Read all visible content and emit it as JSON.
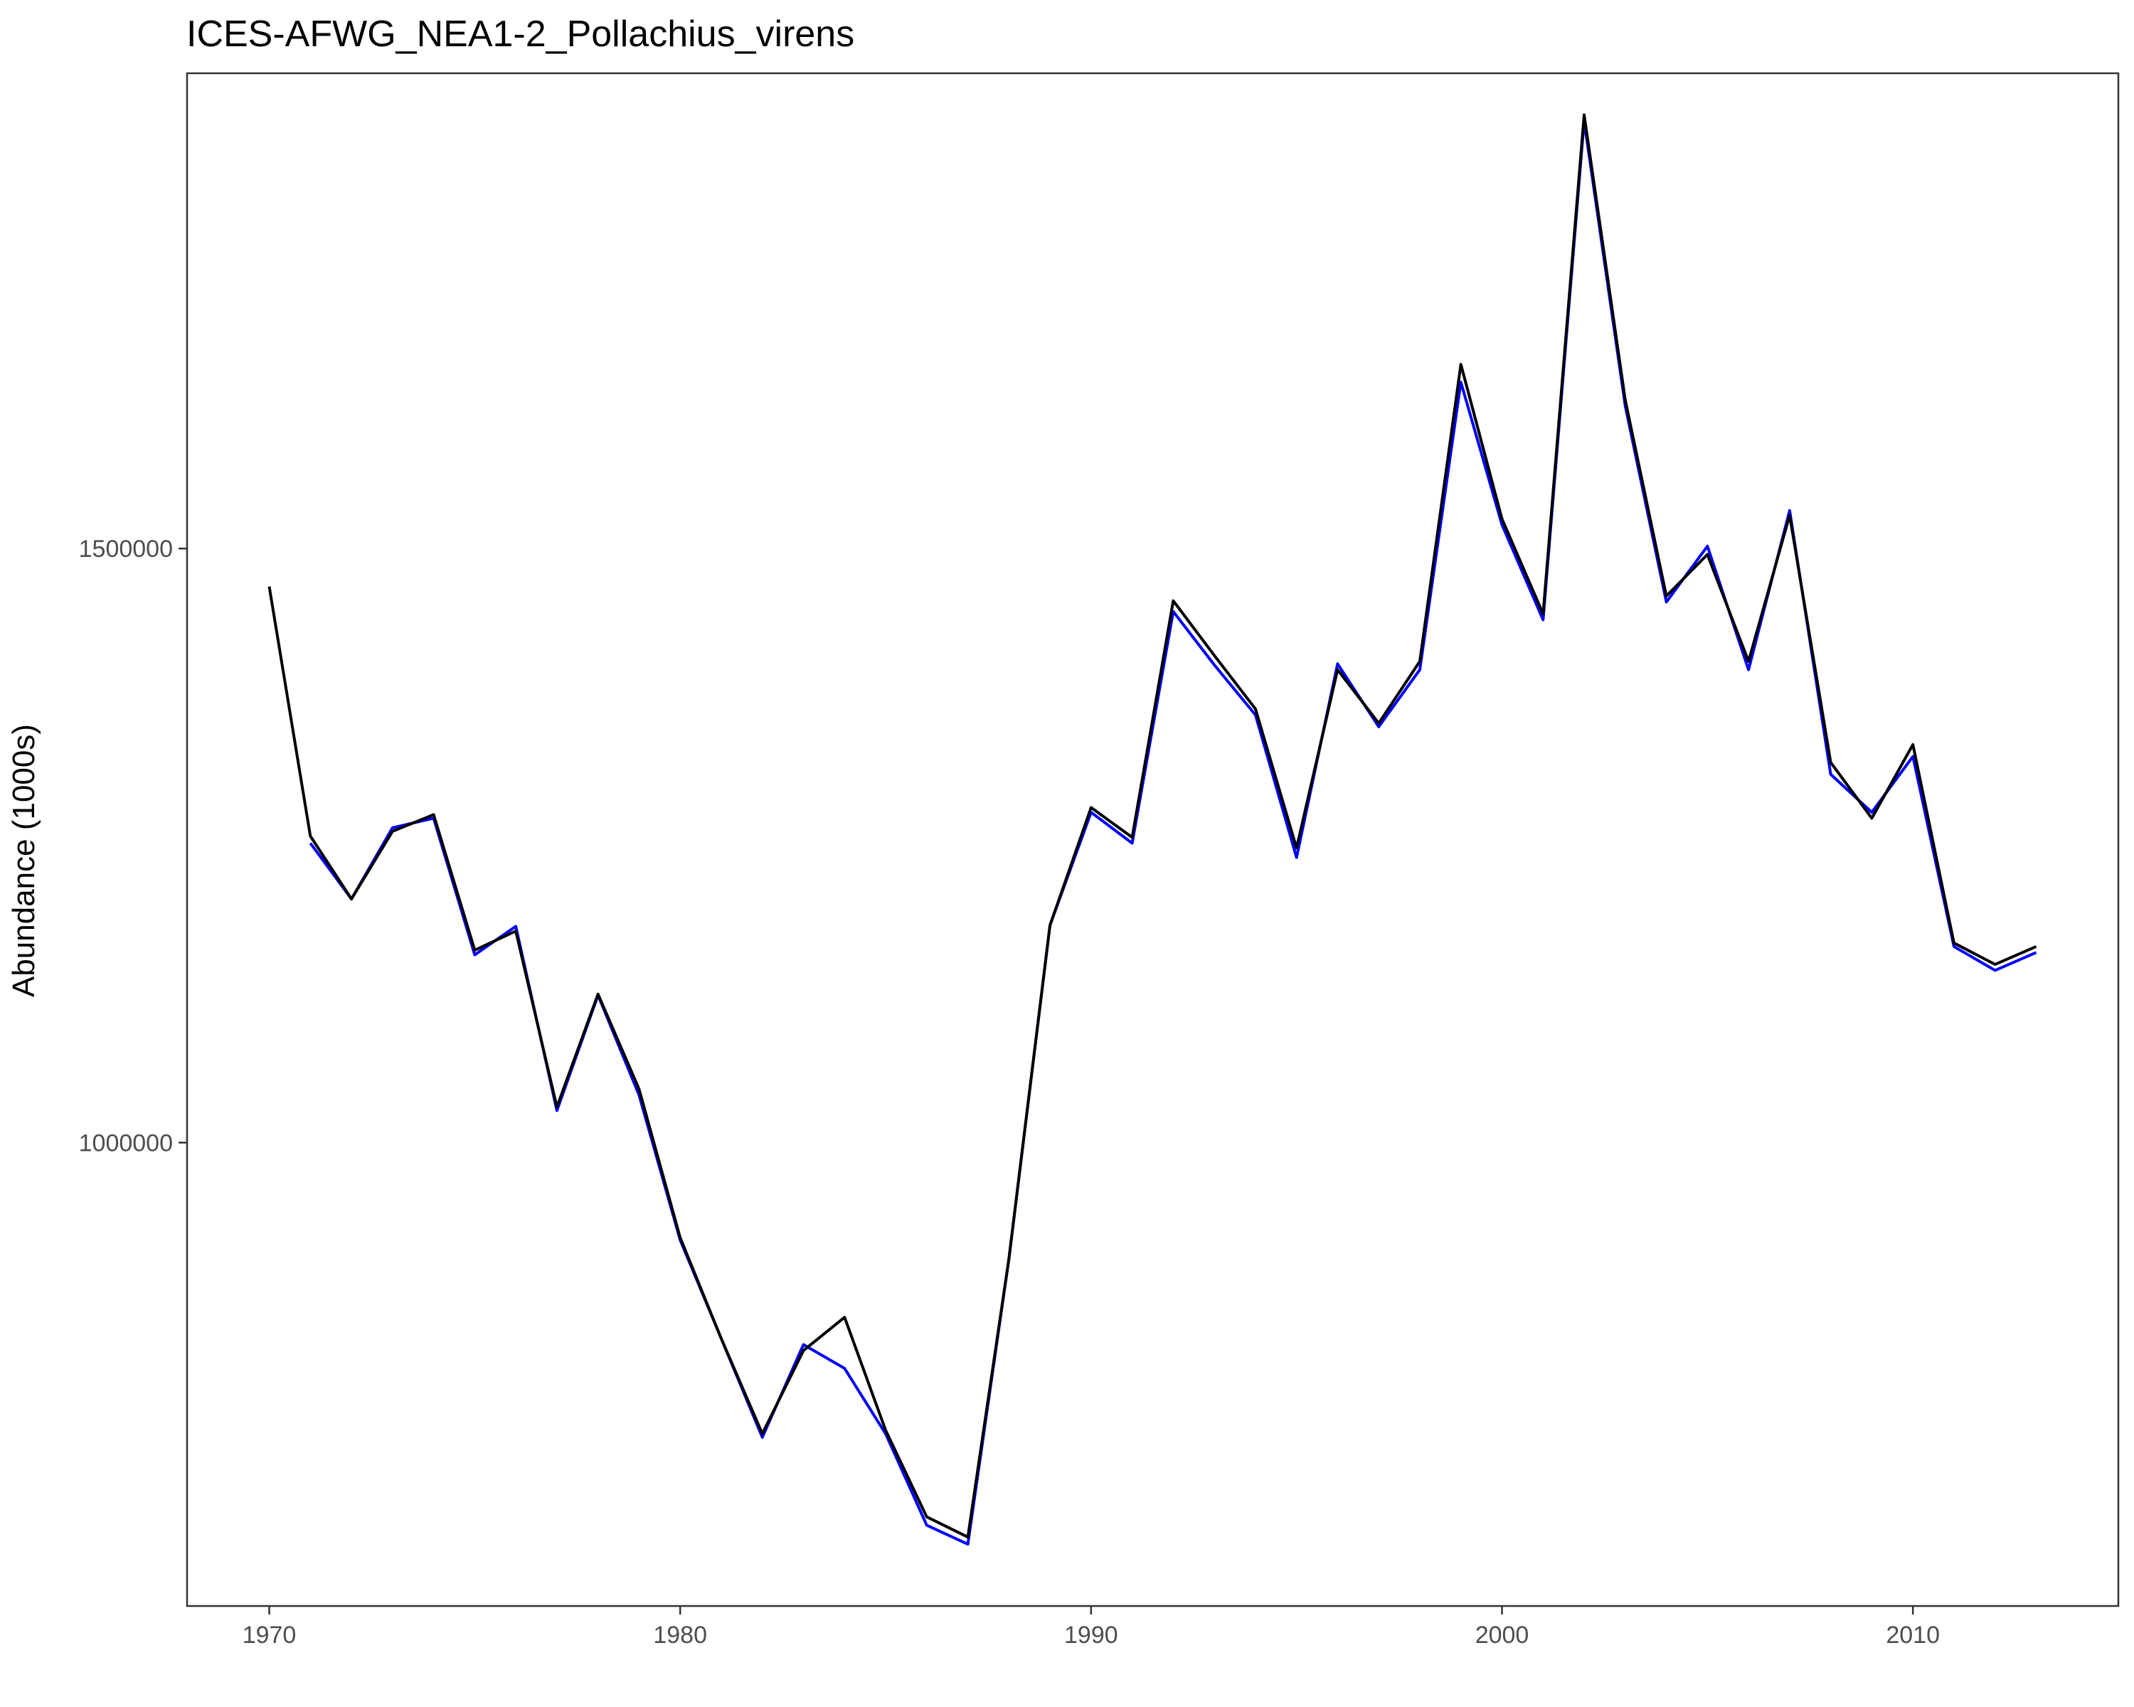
{
  "chart_data": {
    "type": "line",
    "title": "ICES-AFWG_NEA1-2_Pollachius_virens",
    "xlabel": "",
    "ylabel": "Abundance (1000s)",
    "xlim": [
      1968,
      2015
    ],
    "ylim": [
      610000,
      1900000
    ],
    "x_ticks": [
      1970,
      1980,
      1990,
      2000,
      2010
    ],
    "y_ticks": [
      1000000,
      1500000
    ],
    "y_tick_labels": [
      "1000000",
      "1500000"
    ],
    "grid": false,
    "legend": "none",
    "series": [
      {
        "color": "#0000ff",
        "x": [
          1971,
          1972,
          1973,
          1974,
          1975,
          1976,
          1977,
          1978,
          1979,
          1980,
          1981,
          1982,
          1983,
          1984,
          1985,
          1986,
          1987,
          1988,
          1989,
          1990,
          1991,
          1992,
          1993,
          1994,
          1995,
          1996,
          1997,
          1998,
          1999,
          2000,
          2001,
          2002,
          2003,
          2004,
          2005,
          2006,
          2007,
          2008,
          2009,
          2010,
          2011,
          2012,
          2013
        ],
        "y": [
          1252000,
          1205000,
          1265000,
          1273000,
          1158000,
          1182000,
          1027000,
          1124000,
          1040000,
          918000,
          835000,
          752000,
          830000,
          810000,
          755000,
          678000,
          662000,
          902000,
          1183000,
          1278000,
          1252000,
          1447000,
          1402000,
          1360000,
          1240000,
          1403000,
          1350000,
          1398000,
          1640000,
          1520000,
          1440000,
          1860000,
          1620000,
          1455000,
          1502000,
          1398000,
          1532000,
          1310000,
          1278000,
          1325000,
          1165000,
          1145000,
          1160000
        ]
      },
      {
        "color": "#000000",
        "x": [
          1970,
          1971,
          1972,
          1973,
          1974,
          1975,
          1976,
          1977,
          1978,
          1979,
          1980,
          1981,
          1982,
          1983,
          1984,
          1985,
          1986,
          1987,
          1988,
          1989,
          1990,
          1991,
          1992,
          1993,
          1994,
          1995,
          1996,
          1997,
          1998,
          1999,
          2000,
          2001,
          2002,
          2003,
          2004,
          2005,
          2006,
          2007,
          2008,
          2009,
          2010,
          2011,
          2012,
          2013
        ],
        "y": [
          1468000,
          1258000,
          1205000,
          1262000,
          1276000,
          1162000,
          1178000,
          1030000,
          1125000,
          1045000,
          920000,
          835000,
          755000,
          825000,
          853000,
          758000,
          685000,
          668000,
          902000,
          1183000,
          1282000,
          1257000,
          1456000,
          1410000,
          1365000,
          1248000,
          1398000,
          1353000,
          1405000,
          1655000,
          1525000,
          1445000,
          1865000,
          1625000,
          1460000,
          1495000,
          1405000,
          1528000,
          1320000,
          1273000,
          1335000,
          1168000,
          1150000,
          1165000
        ]
      }
    ]
  }
}
